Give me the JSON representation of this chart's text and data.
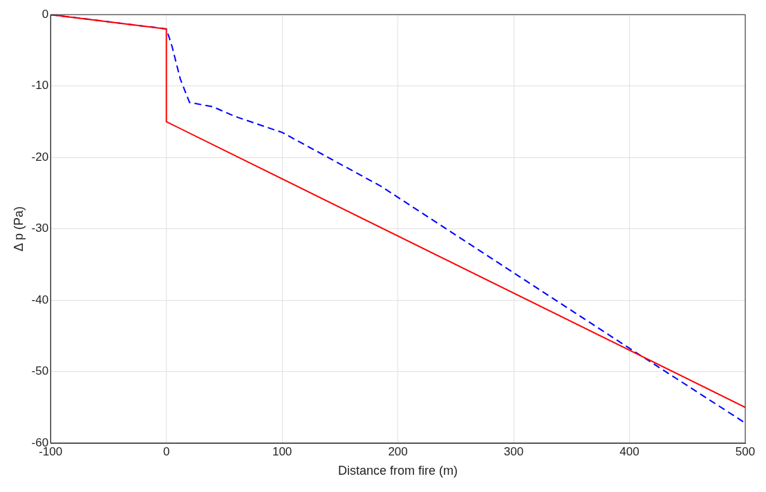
{
  "chart_data": {
    "type": "line",
    "xlabel": "Distance from fire (m)",
    "ylabel": "Δ p (Pa)",
    "xlim": [
      -100,
      500
    ],
    "xticks": [
      -100,
      0,
      100,
      200,
      300,
      400,
      500
    ],
    "ylim": [
      -60,
      0
    ],
    "yticks": [
      -60,
      -50,
      -40,
      -30,
      -20,
      -10,
      0
    ],
    "grid": true,
    "legend": false,
    "marker": "none",
    "series": [
      {
        "color": "#ff0000",
        "line_style": "solid",
        "x": [
          -100,
          0,
          0,
          500
        ],
        "values": [
          0,
          -2,
          -15,
          -55
        ]
      },
      {
        "color": "#0000ff",
        "line_style": "dashed",
        "x": [
          -100,
          0,
          5,
          12,
          20,
          40,
          60,
          100,
          185,
          393,
          500
        ],
        "values": [
          0,
          -2,
          -4.5,
          -9,
          -12.3,
          -12.9,
          -14.3,
          -16.5,
          -24,
          -46,
          -57.2
        ]
      }
    ]
  }
}
